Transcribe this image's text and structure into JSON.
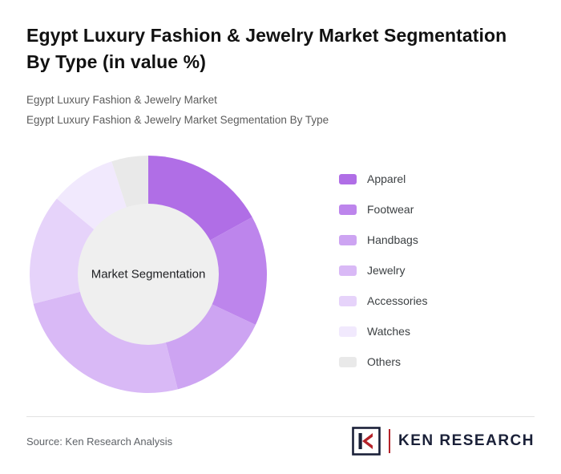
{
  "header": {
    "title": "Egypt Luxury Fashion & Jewelry Market Segmentation By Type (in value %)",
    "subtitle1": "Egypt Luxury Fashion & Jewelry Market",
    "subtitle2": "Egypt Luxury Fashion & Jewelry Market Segmentation By Type"
  },
  "chart_data": {
    "type": "pie",
    "donut": true,
    "center_label": "Market Segmentation",
    "center_fill": "#efefef",
    "categories": [
      "Apparel",
      "Footwear",
      "Handbags",
      "Jewelry",
      "Accessories",
      "Watches",
      "Others"
    ],
    "values": [
      17,
      15,
      14,
      25,
      15,
      9,
      5
    ],
    "colors": [
      "#b06ee6",
      "#bd85ec",
      "#cda4f2",
      "#d9b9f6",
      "#e6d3fa",
      "#f1e9fd",
      "#e9e9e9"
    ],
    "start_angle_deg": 0,
    "direction": "clockwise",
    "legend_position": "right"
  },
  "footer": {
    "source": "Source: Ken Research Analysis",
    "logo_text": "KEN RESEARCH",
    "logo_red": "#b5232a",
    "logo_navy": "#1a2038"
  }
}
